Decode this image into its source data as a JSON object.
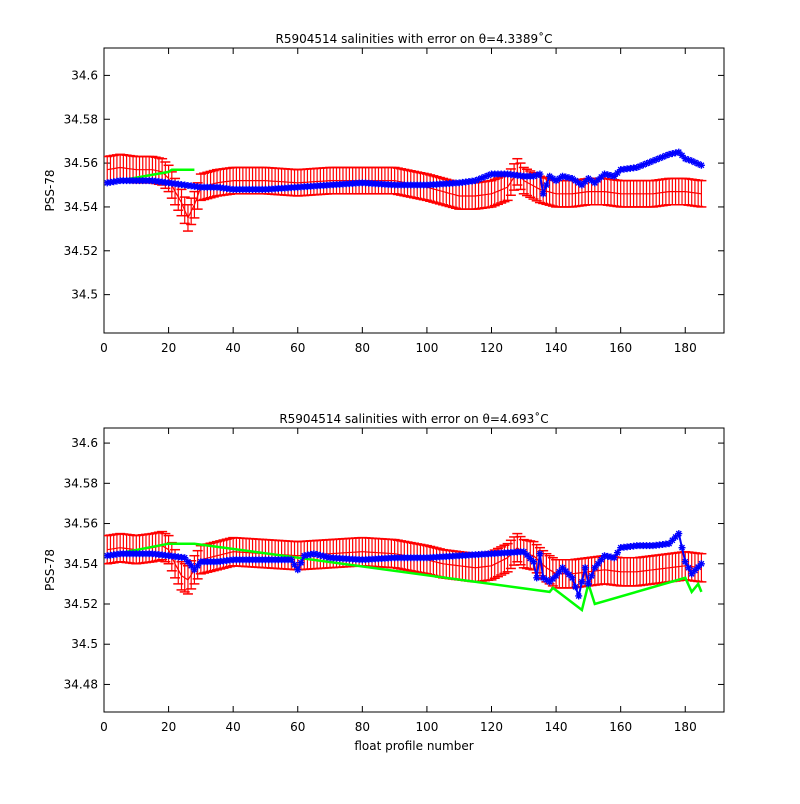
{
  "colors": {
    "model": "#ff0000",
    "original": "#00ff00",
    "corrected": "#0000ff",
    "axes": "#000000"
  },
  "chart_data": [
    {
      "type": "line",
      "title": "R5904514 salinities with error on θ=4.3389˚C",
      "title_prefix": "R5904514 salinities with error on ",
      "title_theta": "θ=4.3389",
      "title_unit": "˚C",
      "xlabel": "",
      "ylabel": "PSS-78",
      "xlim": [
        0,
        192
      ],
      "ylim": [
        34.4825,
        34.6125
      ],
      "xticks": [
        0,
        20,
        40,
        60,
        80,
        100,
        120,
        140,
        160,
        180
      ],
      "yticks": [
        34.5,
        34.52,
        34.54,
        34.56,
        34.58,
        34.6
      ],
      "ytick_labels": [
        "34.5",
        "34.52",
        "34.54",
        "34.56",
        "34.58",
        "34.6"
      ],
      "grid": false,
      "series": [
        {
          "role": "model",
          "x": [
            1,
            5,
            10,
            15,
            18,
            20,
            22,
            24,
            26,
            28,
            30,
            35,
            40,
            50,
            60,
            70,
            80,
            90,
            100,
            105,
            110,
            115,
            120,
            125,
            128,
            130,
            135,
            140,
            145,
            150,
            155,
            160,
            165,
            170,
            175,
            180,
            185
          ],
          "values": [
            34.557,
            34.558,
            34.557,
            34.557,
            34.556,
            34.553,
            34.547,
            34.542,
            34.535,
            34.541,
            34.549,
            34.551,
            34.552,
            34.552,
            34.551,
            34.552,
            34.552,
            34.552,
            34.549,
            34.547,
            34.545,
            34.545,
            34.546,
            34.549,
            34.556,
            34.552,
            34.548,
            34.546,
            34.546,
            34.547,
            34.547,
            34.546,
            34.546,
            34.546,
            34.547,
            34.547,
            34.546
          ],
          "error": 0.006
        },
        {
          "role": "original",
          "x": [
            1,
            20,
            21,
            24,
            28
          ],
          "values": [
            34.551,
            34.556,
            34.557,
            34.557,
            34.557
          ]
        },
        {
          "role": "corrected",
          "x": [
            1,
            5,
            10,
            15,
            20,
            25,
            30,
            35,
            40,
            50,
            60,
            70,
            80,
            90,
            100,
            110,
            115,
            120,
            125,
            130,
            133,
            135,
            136,
            138,
            140,
            142,
            145,
            148,
            150,
            152,
            155,
            158,
            160,
            165,
            170,
            175,
            178,
            180,
            182,
            185
          ],
          "values": [
            34.551,
            34.552,
            34.552,
            34.552,
            34.551,
            34.55,
            34.549,
            34.549,
            34.548,
            34.548,
            34.549,
            34.55,
            34.551,
            34.55,
            34.55,
            34.551,
            34.552,
            34.555,
            34.555,
            34.554,
            34.554,
            34.555,
            34.546,
            34.554,
            34.552,
            34.554,
            34.553,
            34.55,
            34.553,
            34.551,
            34.555,
            34.554,
            34.557,
            34.558,
            34.561,
            34.564,
            34.565,
            34.562,
            34.561,
            34.559
          ]
        }
      ]
    },
    {
      "type": "line",
      "title": "R5904514 salinities with error on θ=4.693˚C",
      "title_prefix": "R5904514 salinities with error on ",
      "title_theta": "θ=4.693",
      "title_unit": "˚C",
      "xlabel": "float profile number",
      "ylabel": "PSS-78",
      "xlim": [
        0,
        192
      ],
      "ylim": [
        34.4663,
        34.6075
      ],
      "xticks": [
        0,
        20,
        40,
        60,
        80,
        100,
        120,
        140,
        160,
        180
      ],
      "yticks": [
        34.48,
        34.5,
        34.52,
        34.54,
        34.56,
        34.58,
        34.6
      ],
      "ytick_labels": [
        "34.48",
        "34.5",
        "34.52",
        "34.54",
        "34.56",
        "34.58",
        "34.6"
      ],
      "grid": false,
      "series": [
        {
          "role": "model",
          "x": [
            1,
            5,
            10,
            15,
            18,
            20,
            22,
            24,
            26,
            28,
            30,
            35,
            40,
            50,
            60,
            70,
            80,
            90,
            100,
            105,
            110,
            115,
            120,
            125,
            128,
            130,
            133,
            135,
            137,
            140,
            145,
            150,
            155,
            160,
            165,
            170,
            175,
            180,
            185
          ],
          "values": [
            34.547,
            34.548,
            34.547,
            34.548,
            34.549,
            34.547,
            34.54,
            34.534,
            34.532,
            34.537,
            34.542,
            34.544,
            34.546,
            34.545,
            34.544,
            34.545,
            34.546,
            34.545,
            34.542,
            34.54,
            34.539,
            34.538,
            34.539,
            34.543,
            34.548,
            34.545,
            34.544,
            34.541,
            34.538,
            34.535,
            34.535,
            34.536,
            34.537,
            34.536,
            34.536,
            34.537,
            34.538,
            34.539,
            34.538
          ],
          "error": 0.007
        },
        {
          "role": "original",
          "x": [
            1,
            20,
            21,
            24,
            28,
            138,
            139,
            148,
            150,
            152,
            180,
            182,
            184,
            185
          ],
          "values": [
            34.544,
            34.55,
            34.55,
            34.55,
            34.55,
            34.526,
            34.528,
            34.517,
            34.53,
            34.52,
            34.533,
            34.526,
            34.53,
            34.526
          ]
        },
        {
          "role": "corrected",
          "x": [
            1,
            5,
            10,
            15,
            20,
            25,
            28,
            30,
            35,
            40,
            50,
            58,
            60,
            62,
            65,
            70,
            80,
            90,
            100,
            110,
            120,
            130,
            133,
            134,
            135,
            136,
            138,
            140,
            142,
            145,
            147,
            148,
            149,
            150,
            152,
            155,
            158,
            160,
            165,
            170,
            175,
            178,
            180,
            182,
            185
          ],
          "values": [
            34.544,
            34.545,
            34.545,
            34.545,
            34.544,
            34.543,
            34.537,
            34.541,
            34.541,
            34.542,
            34.542,
            34.542,
            34.537,
            34.544,
            34.545,
            34.543,
            34.542,
            34.543,
            34.543,
            34.544,
            34.545,
            34.546,
            34.541,
            34.533,
            34.545,
            34.533,
            34.531,
            34.534,
            34.538,
            34.533,
            34.524,
            34.531,
            34.538,
            34.53,
            34.538,
            34.544,
            34.543,
            34.548,
            34.549,
            34.549,
            34.55,
            34.555,
            34.541,
            34.535,
            34.54
          ]
        }
      ]
    }
  ]
}
